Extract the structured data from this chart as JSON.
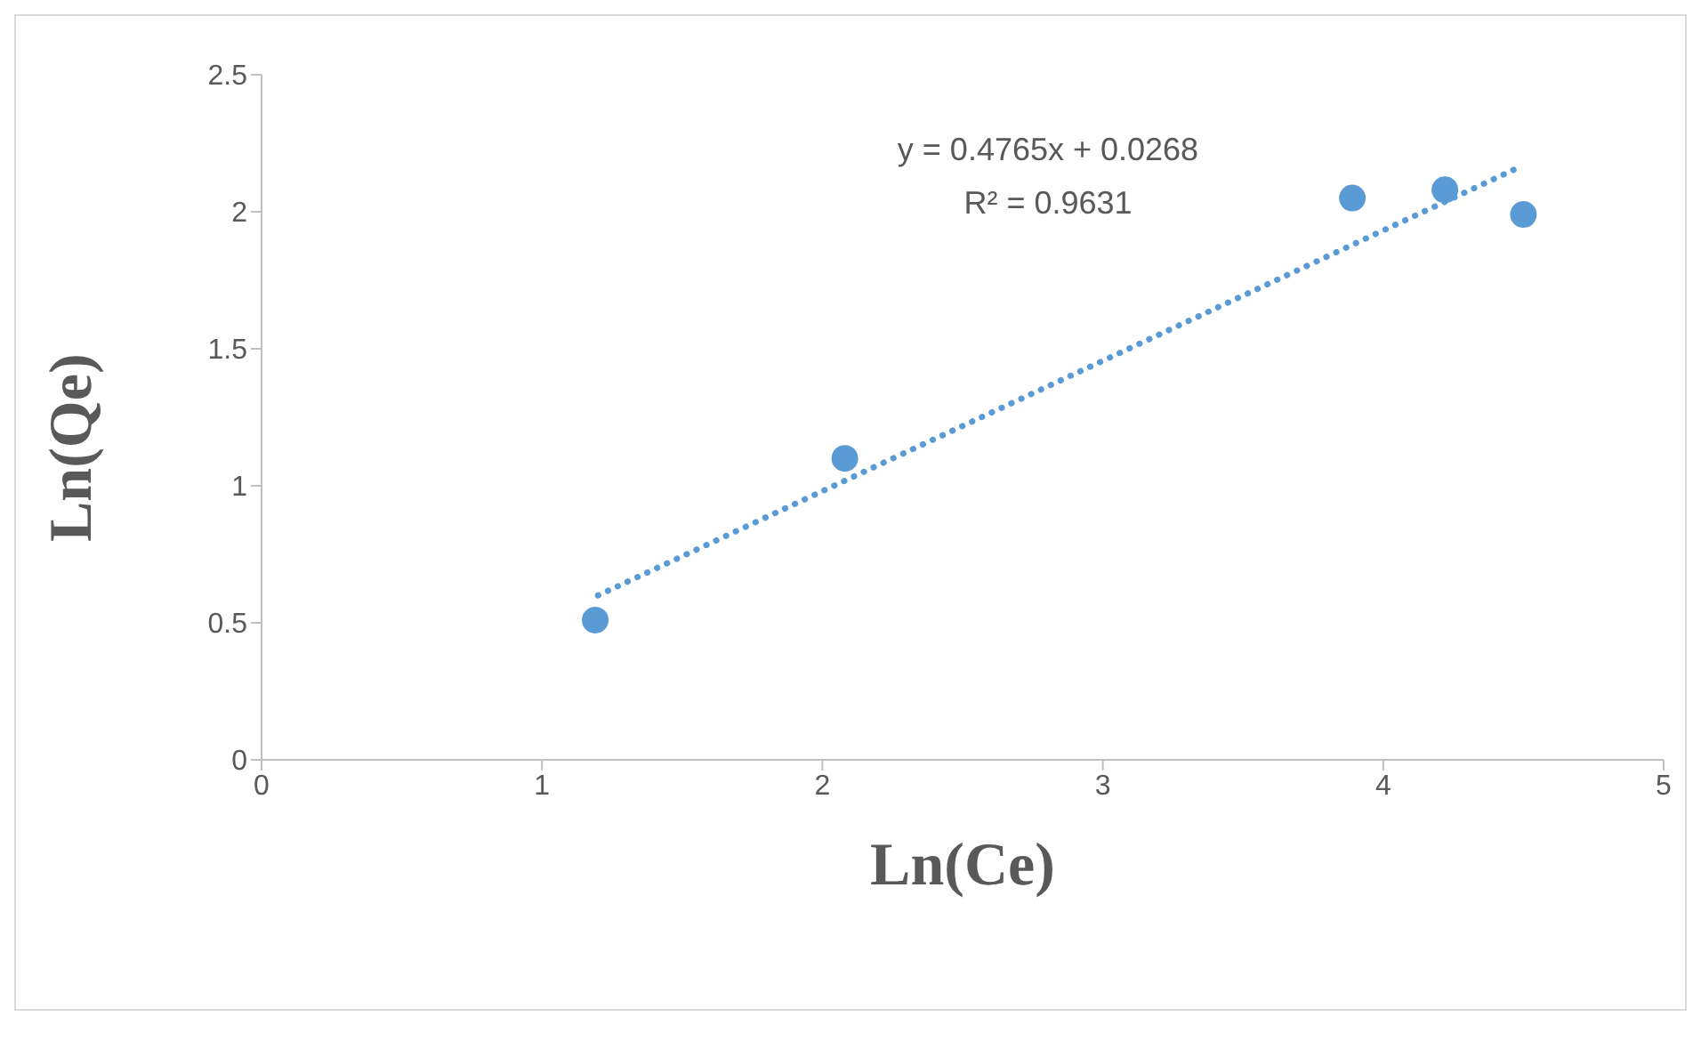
{
  "chart_data": {
    "type": "scatter",
    "xlabel": "Ln(Ce)",
    "ylabel": "Ln(Qe)",
    "xlim": [
      0,
      5
    ],
    "xticks": [
      0,
      1,
      2,
      3,
      4,
      5
    ],
    "ylim": [
      0,
      2.5
    ],
    "yticks": [
      0,
      0.5,
      1,
      1.5,
      2,
      2.5
    ],
    "grid": false,
    "legend": false,
    "marker": "circle",
    "annotations": [
      "y = 0.4765x + 0.0268",
      "R² = 0.9631"
    ],
    "series": [
      {
        "color": "#5b9bd5",
        "x": [
          1.19,
          2.08,
          3.89,
          4.22,
          4.5
        ],
        "values": [
          0.51,
          1.1,
          2.05,
          2.08,
          1.99
        ]
      },
      {
        "type": "line",
        "color": "#5b9bd5",
        "line_style": "dotted",
        "marker": "none",
        "x": [
          1.2,
          4.48
        ],
        "values": [
          0.6,
          2.16
        ]
      }
    ]
  }
}
